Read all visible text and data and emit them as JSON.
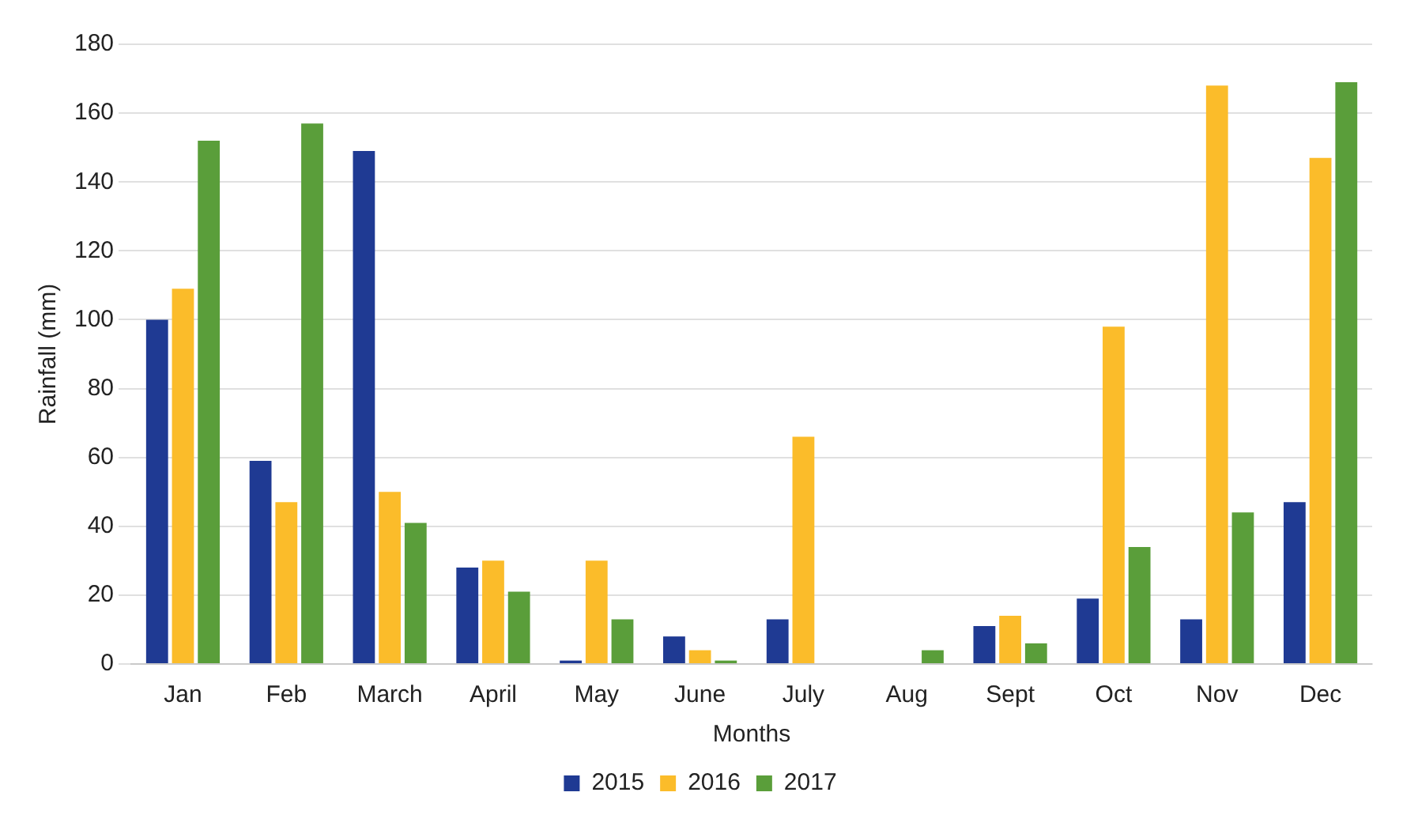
{
  "chart_data": {
    "type": "bar",
    "xlabel": "Months",
    "ylabel": "Rainfall (mm)",
    "categories": [
      "Jan",
      "Feb",
      "March",
      "April",
      "May",
      "June",
      "July",
      "Aug",
      "Sept",
      "Oct",
      "Nov",
      "Dec"
    ],
    "series": [
      {
        "name": "2015",
        "color": "#1f3a93",
        "values": [
          100,
          59,
          149,
          28,
          1,
          8,
          13,
          0,
          11,
          19,
          13,
          47
        ]
      },
      {
        "name": "2016",
        "color": "#fbbc2a",
        "values": [
          109,
          47,
          50,
          30,
          30,
          4,
          66,
          0,
          14,
          98,
          168,
          147
        ]
      },
      {
        "name": "2017",
        "color": "#5a9e3a",
        "values": [
          152,
          157,
          41,
          21,
          13,
          1,
          0,
          4,
          6,
          34,
          44,
          169
        ]
      }
    ],
    "ylim": [
      0,
      180
    ],
    "yticks": [
      0,
      20,
      40,
      60,
      80,
      100,
      120,
      140,
      160,
      180
    ],
    "grid": "y",
    "legend": "bottom"
  }
}
